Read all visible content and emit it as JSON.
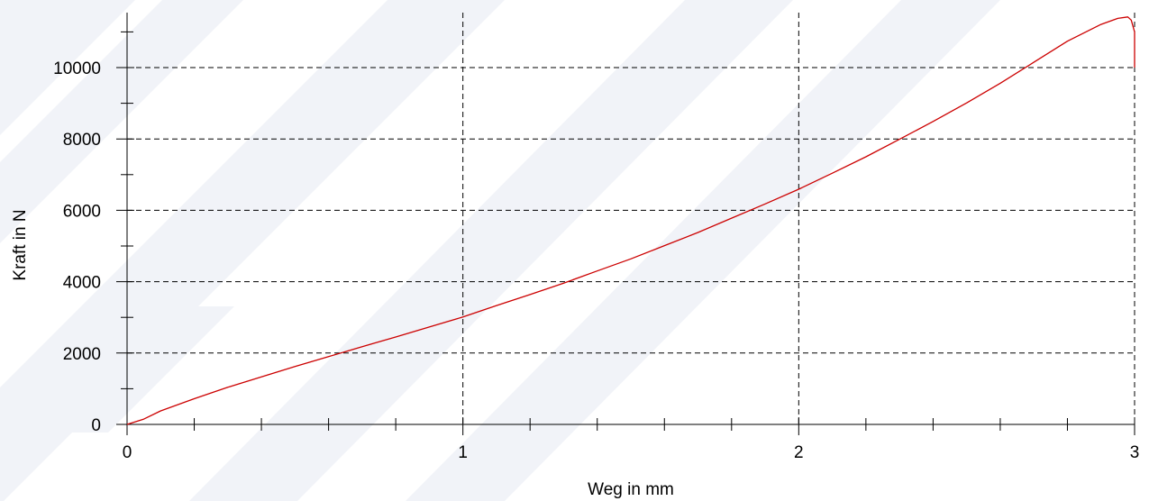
{
  "chart_data": {
    "type": "line",
    "title": "",
    "xlabel": "Weg in mm",
    "ylabel": "Kraft in N",
    "xlim": [
      0,
      3
    ],
    "ylim": [
      0,
      11500
    ],
    "x_ticks": [
      0,
      1,
      2,
      3
    ],
    "y_ticks": [
      0,
      2000,
      4000,
      6000,
      8000,
      10000
    ],
    "grid": true,
    "colors": {
      "line": "#cc0000",
      "watermark": "#f1f3f8"
    },
    "series": [
      {
        "x": [
          0,
          0.05,
          0.1,
          0.2,
          0.3,
          0.4,
          0.5,
          0.6,
          0.7,
          0.8,
          0.9,
          1.0,
          1.1,
          1.2,
          1.3,
          1.4,
          1.5,
          1.6,
          1.7,
          1.8,
          1.9,
          2.0,
          2.1,
          2.2,
          2.3,
          2.4,
          2.5,
          2.6,
          2.7,
          2.8,
          2.9,
          2.95,
          2.98,
          2.99,
          3.0,
          3.0
        ],
        "y": [
          0,
          150,
          380,
          720,
          1040,
          1330,
          1620,
          1900,
          2180,
          2450,
          2730,
          3010,
          3330,
          3640,
          3960,
          4300,
          4640,
          5010,
          5380,
          5780,
          6180,
          6590,
          7040,
          7500,
          7990,
          8490,
          9010,
          9560,
          10150,
          10740,
          11210,
          11380,
          11420,
          11330,
          11000,
          10000
        ]
      }
    ]
  }
}
